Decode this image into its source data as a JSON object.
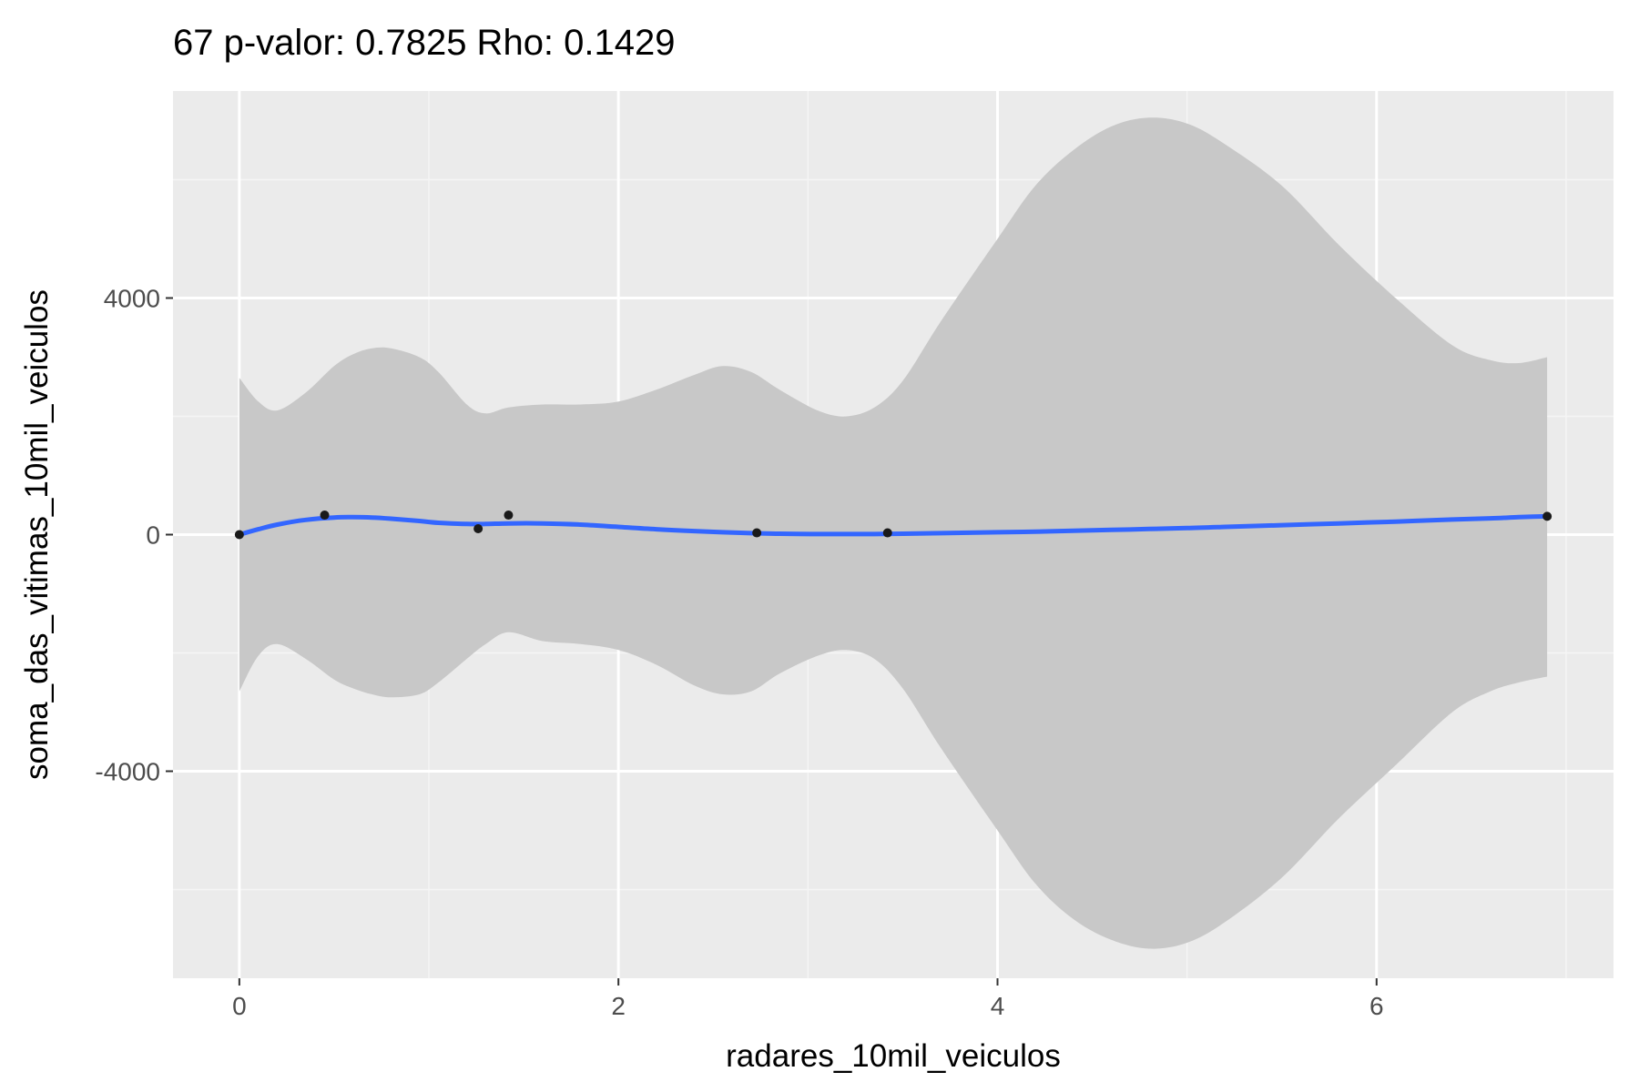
{
  "chart_data": {
    "type": "scatter",
    "title": "67 p-valor: 0.7825 Rho: 0.1429",
    "xlabel": "radares_10mil_veiculos",
    "ylabel": "soma_das_vitimas_10mil_veiculos",
    "xlim": [
      -0.35,
      7.25
    ],
    "ylim": [
      -7500,
      7500
    ],
    "x_ticks": [
      0,
      2,
      4,
      6
    ],
    "x_tick_labels": [
      "0",
      "2",
      "4",
      "6"
    ],
    "y_ticks": [
      -4000,
      0,
      4000
    ],
    "y_tick_labels": [
      "-4000",
      "0",
      "4000"
    ],
    "grid": true,
    "legend": "none",
    "points": [
      {
        "x": 0.0,
        "y": 0
      },
      {
        "x": 0.45,
        "y": 330
      },
      {
        "x": 1.26,
        "y": 100
      },
      {
        "x": 1.42,
        "y": 330
      },
      {
        "x": 2.73,
        "y": 30
      },
      {
        "x": 3.42,
        "y": 30
      },
      {
        "x": 6.9,
        "y": 310
      }
    ],
    "smooth": {
      "x": [
        0.0,
        0.1,
        0.2,
        0.35,
        0.5,
        0.6,
        0.7,
        0.8,
        0.95,
        1.05,
        1.2,
        1.3,
        1.42,
        1.6,
        1.8,
        2.0,
        2.2,
        2.4,
        2.55,
        2.7,
        2.85,
        3.05,
        3.2,
        3.35,
        3.5,
        3.7,
        4.0,
        4.2,
        4.4,
        4.6,
        4.8,
        5.0,
        5.2,
        5.5,
        5.8,
        6.1,
        6.4,
        6.6,
        6.75,
        6.9
      ],
      "y": [
        0,
        90,
        170,
        250,
        290,
        295,
        290,
        270,
        230,
        200,
        180,
        180,
        190,
        190,
        170,
        130,
        90,
        60,
        40,
        25,
        15,
        10,
        10,
        10,
        15,
        25,
        40,
        50,
        65,
        80,
        95,
        110,
        130,
        160,
        190,
        220,
        255,
        275,
        295,
        310
      ],
      "upper": [
        2650,
        2250,
        2100,
        2400,
        2850,
        3050,
        3150,
        3150,
        3000,
        2750,
        2200,
        2050,
        2150,
        2200,
        2200,
        2250,
        2450,
        2700,
        2850,
        2750,
        2450,
        2100,
        2000,
        2150,
        2600,
        3600,
        5000,
        5900,
        6500,
        6900,
        7050,
        6950,
        6600,
        5900,
        4900,
        4000,
        3200,
        2950,
        2900,
        3000
      ],
      "lower": [
        -2650,
        -2050,
        -1850,
        -2100,
        -2450,
        -2600,
        -2700,
        -2750,
        -2700,
        -2500,
        -2100,
        -1850,
        -1650,
        -1800,
        -1850,
        -1950,
        -2200,
        -2550,
        -2700,
        -2650,
        -2350,
        -2050,
        -1950,
        -2100,
        -2600,
        -3600,
        -5000,
        -5900,
        -6500,
        -6850,
        -7000,
        -6900,
        -6550,
        -5800,
        -4800,
        -3900,
        -3000,
        -2650,
        -2500,
        -2400
      ]
    },
    "colors": {
      "panel": "#ebebeb",
      "grid_major": "#ffffff",
      "grid_minor": "#f5f5f5",
      "ribbon": "#c8c8c8",
      "line": "#3366ff",
      "point": "#1a1a1a",
      "tick": "#333333"
    }
  }
}
